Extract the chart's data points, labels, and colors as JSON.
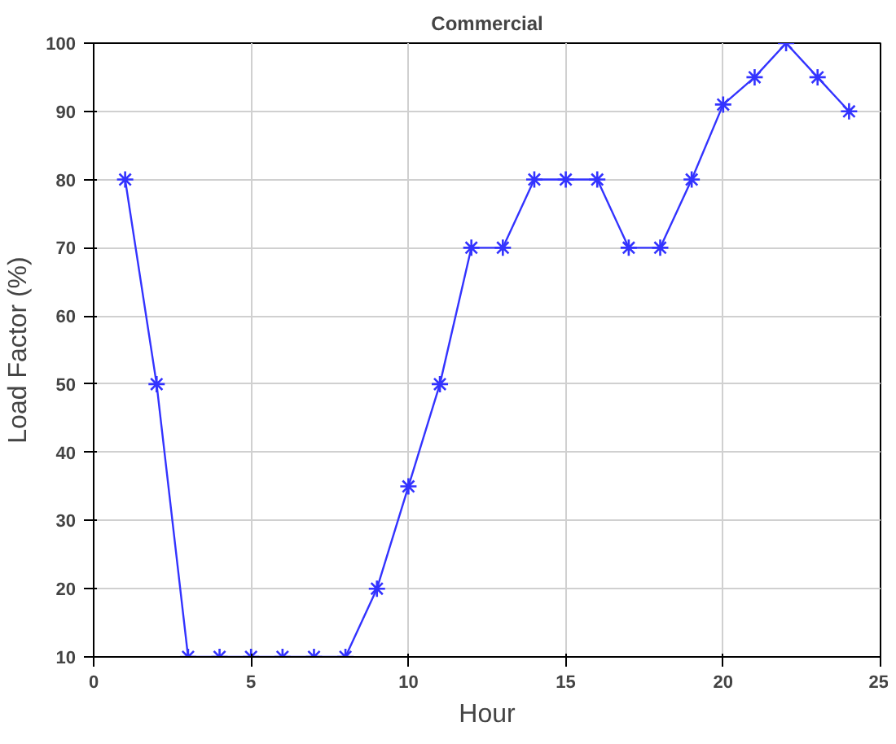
{
  "chart_data": {
    "type": "line",
    "title": "Commercial",
    "xlabel": "Hour",
    "ylabel": "Load Factor (%)",
    "x": [
      1,
      2,
      3,
      4,
      5,
      6,
      7,
      8,
      9,
      10,
      11,
      12,
      13,
      14,
      15,
      16,
      17,
      18,
      19,
      20,
      21,
      22,
      23,
      24
    ],
    "series": [
      {
        "color": "#3333ff",
        "values": [
          80,
          50,
          10,
          10,
          10,
          10,
          10,
          10,
          20,
          35,
          50,
          70,
          70,
          80,
          80,
          80,
          70,
          70,
          80,
          91,
          95,
          100,
          95,
          90
        ]
      }
    ],
    "xlim": [
      0,
      25
    ],
    "xticks": [
      0,
      5,
      10,
      15,
      20,
      25
    ],
    "ylim": [
      10,
      100
    ],
    "yticks": [
      10,
      20,
      30,
      40,
      50,
      60,
      70,
      80,
      90,
      100
    ],
    "grid": true,
    "marker": "cross",
    "line_style": "solid"
  }
}
